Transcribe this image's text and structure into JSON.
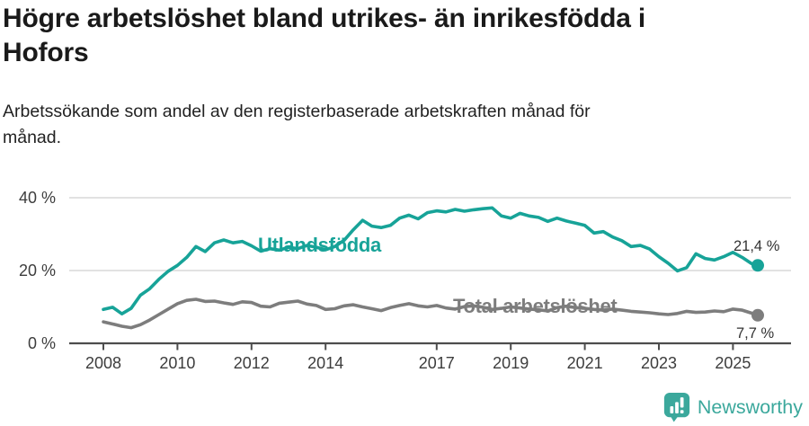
{
  "header": {
    "title": "Högre arbetslöshet bland utrikes- än inrikesfödda i\nHofors",
    "subtitle": "Arbetssökande som andel av den registerbaserade arbetskraften månad för\nmånad."
  },
  "footer": {
    "brand": "Newsworthy",
    "brand_color": "#3ba89c",
    "logo_icon": "bar-chart-speech-bubble"
  },
  "chart_data": {
    "type": "line",
    "title": "Högre arbetslöshet bland utrikes- än inrikesfödda i Hofors",
    "subtitle": "Arbetssökande som andel av den registerbaserade arbetskraften månad för månad.",
    "grid": "horizontal-only",
    "legend_position": "inline-labels-on-lines",
    "x_axis": {
      "ticks": [
        2008,
        2010,
        2012,
        2014,
        2017,
        2019,
        2021,
        2023,
        2025
      ],
      "range": [
        2007.9,
        2026.6
      ]
    },
    "y_axis": {
      "tick_labels": [
        "40 %",
        "20 %",
        "0 %"
      ],
      "tick_values": [
        40,
        20,
        0
      ],
      "range": [
        0,
        46
      ],
      "unit": "%"
    },
    "x": [
      2008.0,
      2008.25,
      2008.5,
      2008.75,
      2009.0,
      2009.25,
      2009.5,
      2009.75,
      2010.0,
      2010.25,
      2010.5,
      2010.75,
      2011.0,
      2011.25,
      2011.5,
      2011.75,
      2012.0,
      2012.25,
      2012.5,
      2012.75,
      2013.0,
      2013.25,
      2013.5,
      2013.75,
      2014.0,
      2014.25,
      2014.5,
      2014.75,
      2015.0,
      2015.25,
      2015.5,
      2015.75,
      2016.0,
      2016.25,
      2016.5,
      2016.75,
      2017.0,
      2017.25,
      2017.5,
      2017.75,
      2018.0,
      2018.25,
      2018.5,
      2018.75,
      2019.0,
      2019.25,
      2019.5,
      2019.75,
      2020.0,
      2020.25,
      2020.5,
      2020.75,
      2021.0,
      2021.25,
      2021.5,
      2021.75,
      2022.0,
      2022.25,
      2022.5,
      2022.75,
      2023.0,
      2023.25,
      2023.5,
      2023.75,
      2024.0,
      2024.25,
      2024.5,
      2024.75,
      2025.0,
      2025.25,
      2025.5,
      2025.67
    ],
    "series": [
      {
        "name": "Utlandsfödda",
        "color": "#17a398",
        "end_label": "21,4 %",
        "end_value": 21.4,
        "values": [
          9.3,
          9.9,
          8.1,
          9.6,
          13.2,
          15.0,
          17.6,
          19.8,
          21.4,
          23.6,
          26.6,
          25.2,
          27.6,
          28.4,
          27.6,
          28.0,
          26.8,
          25.3,
          26.0,
          25.6,
          26.4,
          26.0,
          26.9,
          26.4,
          25.7,
          26.6,
          28.3,
          31.2,
          33.8,
          32.2,
          31.8,
          32.4,
          34.4,
          35.2,
          34.2,
          35.9,
          36.4,
          36.1,
          36.8,
          36.3,
          36.7,
          37.0,
          37.2,
          35.0,
          34.4,
          35.7,
          35.0,
          34.6,
          33.5,
          34.4,
          33.6,
          33.0,
          32.4,
          30.3,
          30.7,
          29.2,
          28.2,
          26.6,
          26.9,
          25.9,
          23.8,
          22.0,
          19.9,
          20.8,
          24.6,
          23.3,
          22.9,
          23.8,
          25.0,
          23.6,
          21.9,
          21.4
        ]
      },
      {
        "name": "Total arbetslöshet",
        "color": "#7d7d7d",
        "end_label": "7,7 %",
        "end_value": 7.7,
        "values": [
          5.9,
          5.3,
          4.7,
          4.3,
          5.1,
          6.4,
          7.9,
          9.4,
          10.9,
          11.8,
          12.1,
          11.5,
          11.6,
          11.1,
          10.7,
          11.4,
          11.2,
          10.2,
          10.0,
          11.0,
          11.3,
          11.6,
          10.8,
          10.4,
          9.3,
          9.5,
          10.3,
          10.6,
          10.0,
          9.5,
          9.0,
          9.8,
          10.4,
          10.9,
          10.3,
          10.0,
          10.4,
          9.7,
          9.4,
          10.1,
          10.3,
          9.9,
          9.3,
          9.6,
          10.0,
          9.7,
          9.4,
          9.2,
          8.9,
          9.8,
          10.2,
          9.8,
          9.6,
          9.3,
          9.1,
          9.4,
          9.1,
          8.8,
          8.6,
          8.4,
          8.1,
          7.9,
          8.2,
          8.8,
          8.5,
          8.6,
          8.9,
          8.7,
          9.4,
          9.1,
          8.3,
          7.7
        ]
      }
    ]
  }
}
